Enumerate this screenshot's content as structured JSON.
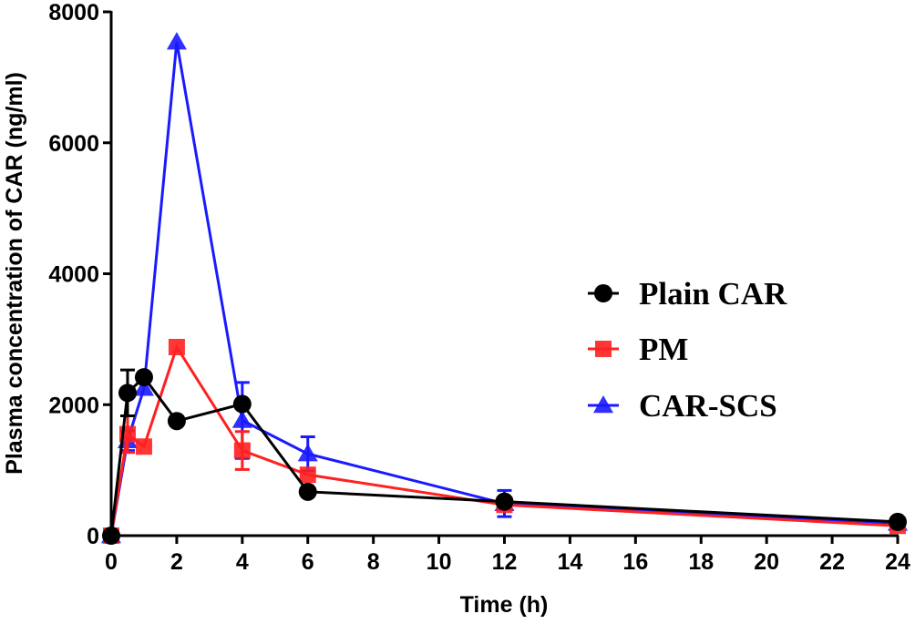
{
  "chart_data": {
    "type": "line",
    "title": "",
    "xlabel": "Time (h)",
    "ylabel": "Plasma concentration of CAR (ng/ml)",
    "xlim": [
      0,
      24
    ],
    "ylim": [
      0,
      8000
    ],
    "xticks": [
      0,
      2,
      4,
      6,
      8,
      10,
      12,
      14,
      16,
      18,
      20,
      22,
      24
    ],
    "yticks": [
      0,
      2000,
      4000,
      6000,
      8000
    ],
    "grid": false,
    "legend_position": "center-right",
    "x": [
      0,
      0.5,
      1,
      2,
      4,
      6,
      12,
      24
    ],
    "series": [
      {
        "name": "Plain CAR",
        "color": "#000000",
        "marker": "circle",
        "values": [
          0,
          2180,
          2420,
          1750,
          2010,
          670,
          520,
          210
        ],
        "errors": [
          0,
          350,
          0,
          0,
          0,
          0,
          0,
          0
        ]
      },
      {
        "name": "PM",
        "color": "#ff2020",
        "marker": "square",
        "values": [
          0,
          1550,
          1360,
          2880,
          1300,
          930,
          470,
          150
        ],
        "errors": [
          0,
          280,
          0,
          0,
          290,
          0,
          0,
          0
        ]
      },
      {
        "name": "CAR-SCS",
        "color": "#1a1aff",
        "marker": "triangle",
        "values": [
          0,
          1450,
          2250,
          7540,
          1760,
          1250,
          490,
          190
        ],
        "errors": [
          0,
          150,
          0,
          0,
          580,
          260,
          200,
          0
        ]
      }
    ]
  }
}
